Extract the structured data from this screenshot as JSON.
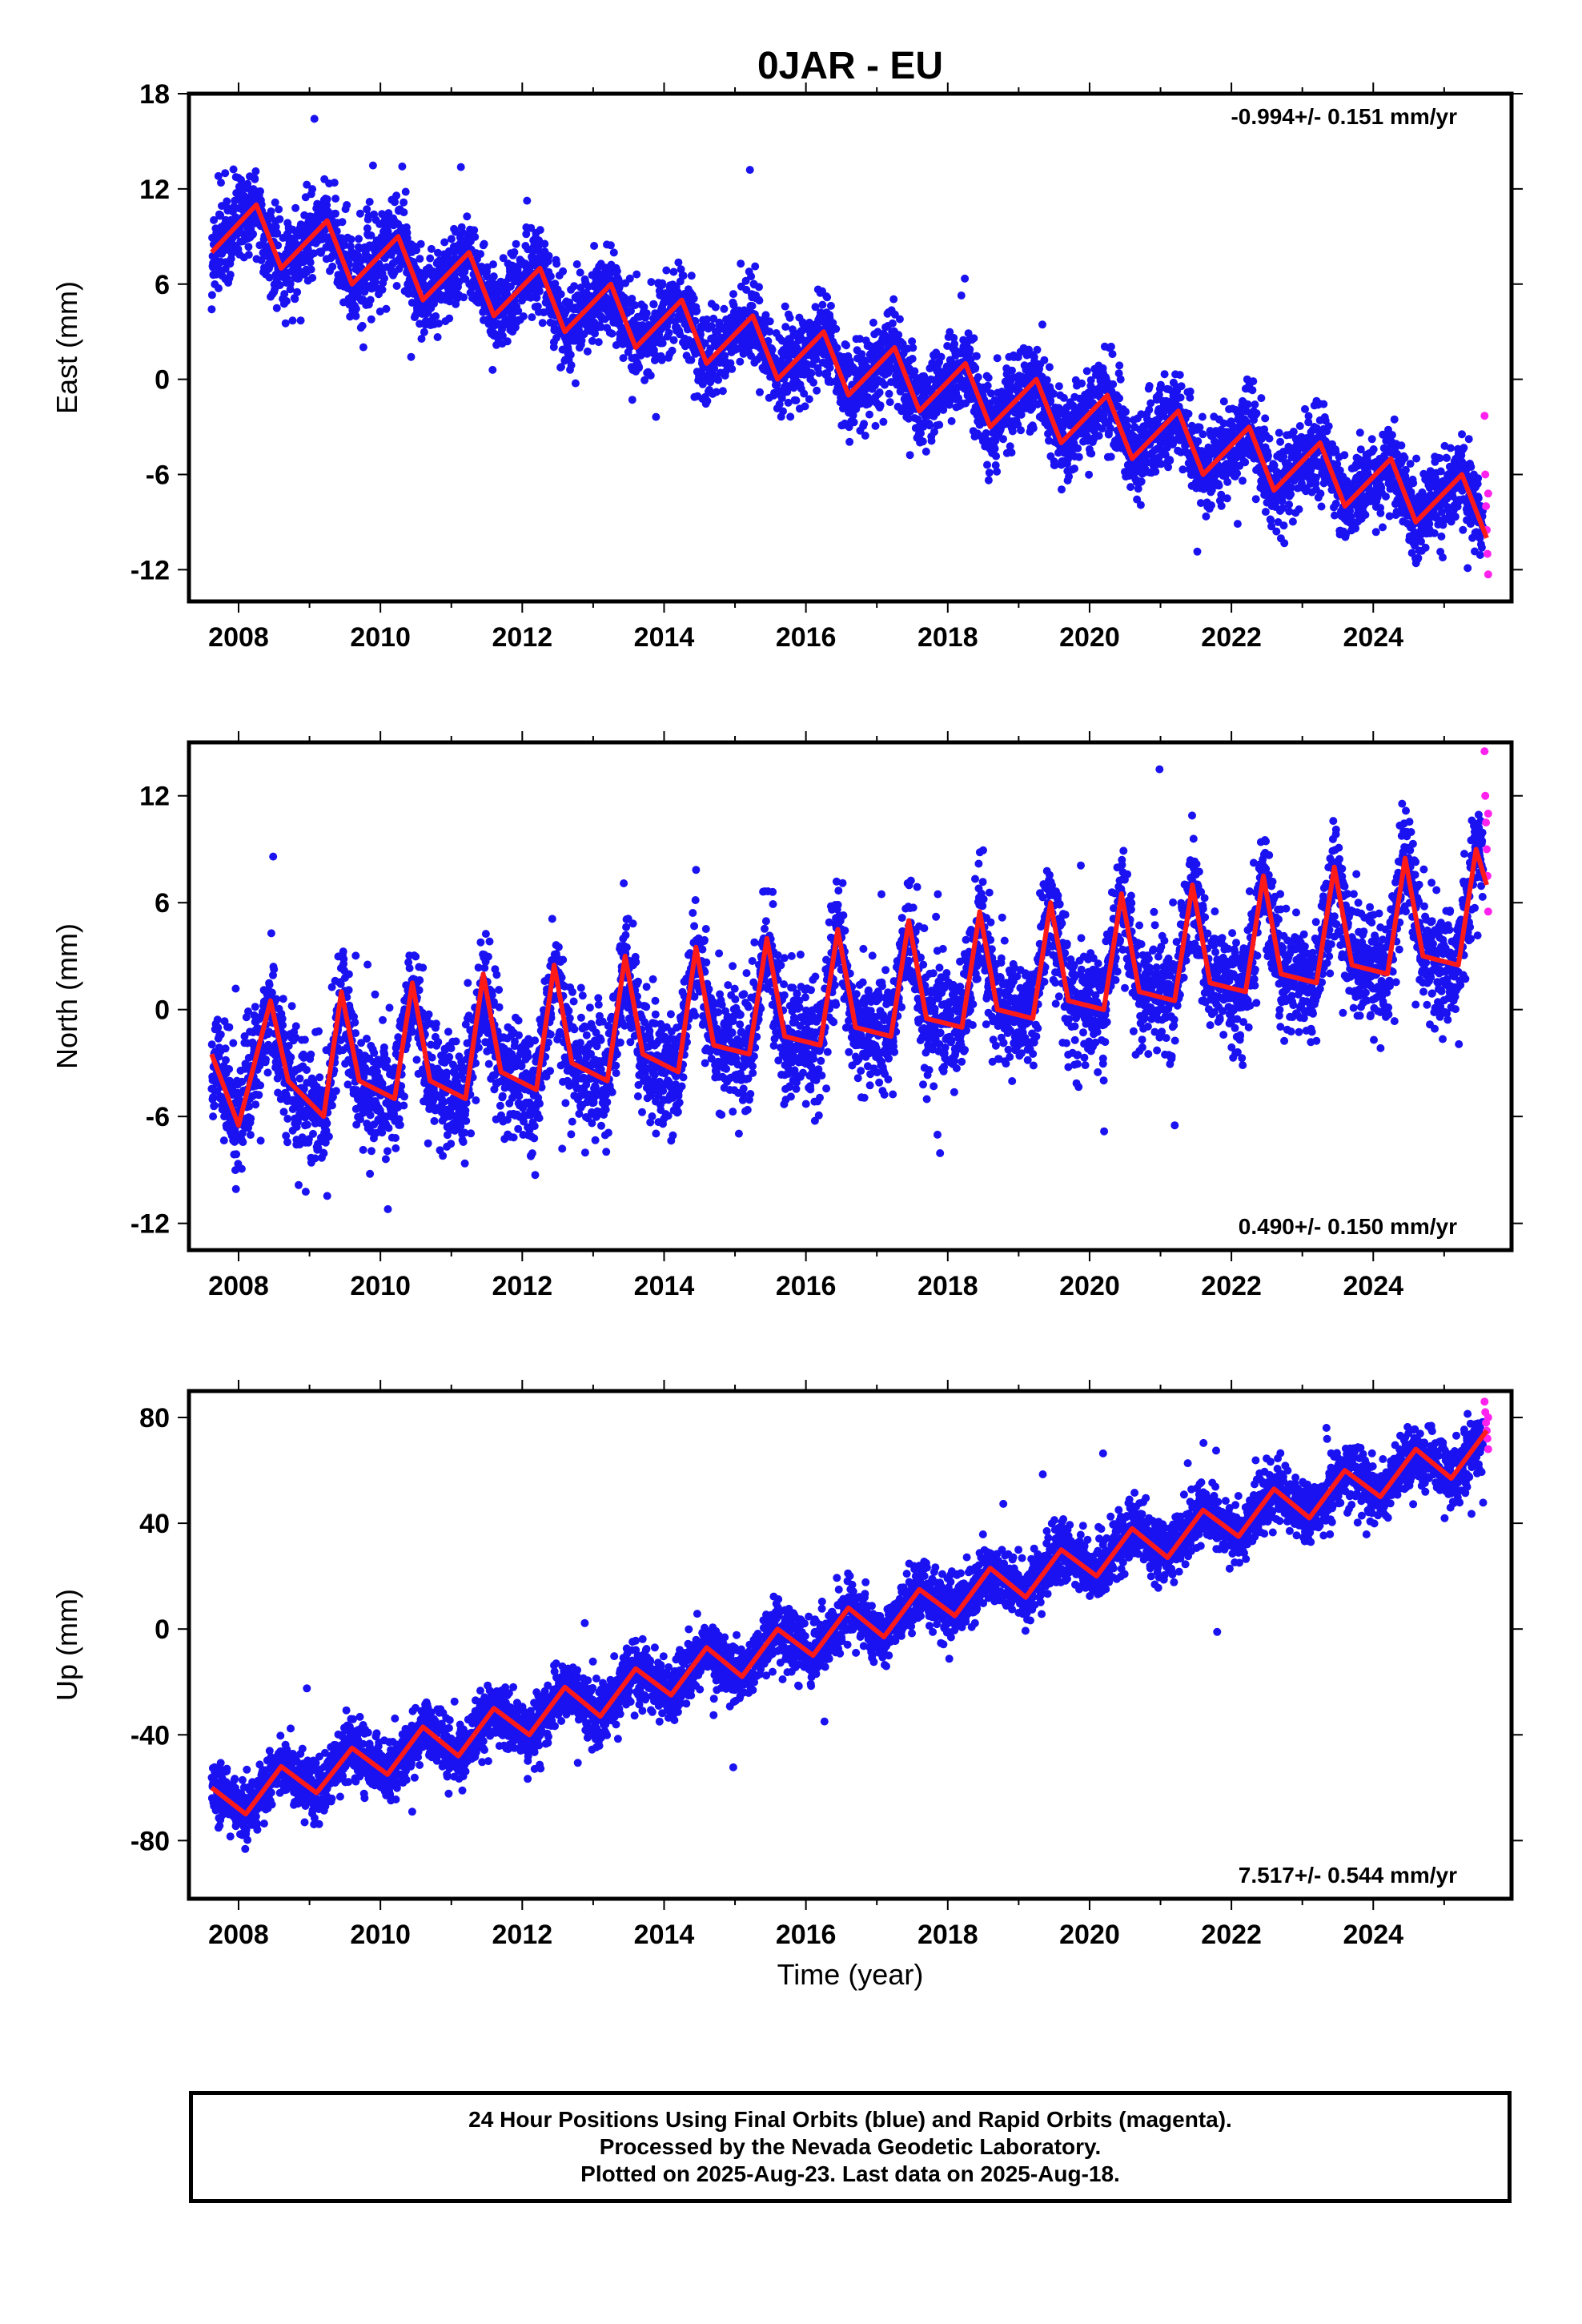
{
  "figure": {
    "title": "0JAR - EU",
    "xlabel": "Time (year)",
    "caption_lines": [
      "24 Hour Positions Using Final Orbits (blue) and Rapid Orbits (magenta).",
      "Processed by the Nevada Geodetic Laboratory.",
      "Plotted on 2025-Aug-23. Last data on 2025-Aug-18."
    ],
    "colors": {
      "final": "#1a12f0",
      "rapid": "#ff22ee",
      "model": "#ff1a1a"
    }
  },
  "chart_data": [
    {
      "type": "scatter",
      "ylabel": "East (mm)",
      "rate": "-0.994+/- 0.151 mm/yr",
      "rate_position": "top-right",
      "xlim": [
        2007.3,
        2025.95
      ],
      "ylim": [
        -14,
        18
      ],
      "xticks": [
        2008,
        2010,
        2012,
        2014,
        2016,
        2018,
        2020,
        2022,
        2024
      ],
      "yticks": [
        -12,
        -6,
        0,
        6,
        12,
        18
      ],
      "series": [
        {
          "type": "scatter",
          "color": "#1a12f0",
          "data_range": [
            2007.62,
            2025.55
          ],
          "trend": {
            "intercept_2008": 8.0,
            "slope": -0.994
          },
          "seasonal_amp": 2.4,
          "scatter_sd": 1.3,
          "points_per_year": 300
        },
        {
          "type": "scatter",
          "color": "#ff22ee",
          "data_range": [
            2025.56,
            2025.63
          ],
          "points": [
            [
              2025.57,
              -2.3
            ],
            [
              2025.58,
              -6.0
            ],
            [
              2025.59,
              -8.0
            ],
            [
              2025.6,
              -9.5
            ],
            [
              2025.61,
              -11.0
            ],
            [
              2025.62,
              -12.3
            ],
            [
              2025.62,
              -7.2
            ]
          ]
        },
        {
          "type": "line",
          "color": "#ff1a1a",
          "points": [
            [
              2007.62,
              8.0
            ],
            [
              2008.25,
              11.0
            ],
            [
              2008.6,
              7.0
            ],
            [
              2009.25,
              10.0
            ],
            [
              2009.6,
              6.0
            ],
            [
              2010.25,
              9.0
            ],
            [
              2010.6,
              5.0
            ],
            [
              2011.25,
              8.0
            ],
            [
              2011.6,
              4.0
            ],
            [
              2012.25,
              7.0
            ],
            [
              2012.6,
              3.0
            ],
            [
              2013.25,
              6.0
            ],
            [
              2013.6,
              2.0
            ],
            [
              2014.25,
              5.0
            ],
            [
              2014.6,
              1.0
            ],
            [
              2015.25,
              4.0
            ],
            [
              2015.6,
              0.0
            ],
            [
              2016.25,
              3.0
            ],
            [
              2016.6,
              -1.0
            ],
            [
              2017.25,
              2.0
            ],
            [
              2017.6,
              -2.0
            ],
            [
              2018.25,
              1.0
            ],
            [
              2018.6,
              -3.0
            ],
            [
              2019.25,
              0.0
            ],
            [
              2019.6,
              -4.0
            ],
            [
              2020.25,
              -1.0
            ],
            [
              2020.6,
              -5.0
            ],
            [
              2021.25,
              -2.0
            ],
            [
              2021.6,
              -6.0
            ],
            [
              2022.25,
              -3.0
            ],
            [
              2022.6,
              -7.0
            ],
            [
              2023.25,
              -4.0
            ],
            [
              2023.6,
              -8.0
            ],
            [
              2024.25,
              -5.0
            ],
            [
              2024.6,
              -9.0
            ],
            [
              2025.25,
              -6.0
            ],
            [
              2025.6,
              -10.0
            ]
          ]
        }
      ]
    },
    {
      "type": "scatter",
      "ylabel": "North (mm)",
      "rate": "0.490+/- 0.150 mm/yr",
      "rate_position": "bottom-right",
      "xlim": [
        2007.3,
        2025.95
      ],
      "ylim": [
        -13.5,
        15
      ],
      "xticks": [
        2008,
        2010,
        2012,
        2014,
        2016,
        2018,
        2020,
        2022,
        2024
      ],
      "yticks": [
        -12,
        -6,
        0,
        6,
        12
      ],
      "series": [
        {
          "type": "scatter",
          "color": "#1a12f0",
          "data_range": [
            2007.62,
            2025.55
          ],
          "trend": {
            "intercept_2008": -3.0,
            "slope": 0.49
          },
          "seasonal_amp": 3.5,
          "scatter_sd": 1.6,
          "points_per_year": 300
        },
        {
          "type": "scatter",
          "color": "#ff22ee",
          "data_range": [
            2025.56,
            2025.63
          ],
          "points": [
            [
              2025.57,
              14.5
            ],
            [
              2025.58,
              12.0
            ],
            [
              2025.59,
              10.5
            ],
            [
              2025.6,
              9.0
            ],
            [
              2025.61,
              7.5
            ],
            [
              2025.62,
              5.5
            ],
            [
              2025.62,
              11.0
            ]
          ]
        },
        {
          "type": "line",
          "color": "#ff1a1a",
          "points": [
            [
              2007.62,
              -2.5
            ],
            [
              2008.0,
              -6.5
            ],
            [
              2008.45,
              0.5
            ],
            [
              2008.7,
              -4.0
            ],
            [
              2009.2,
              -6.0
            ],
            [
              2009.45,
              1.0
            ],
            [
              2009.7,
              -4.0
            ],
            [
              2010.2,
              -5.0
            ],
            [
              2010.45,
              1.5
            ],
            [
              2010.7,
              -4.0
            ],
            [
              2011.2,
              -5.0
            ],
            [
              2011.45,
              2.0
            ],
            [
              2011.7,
              -3.5
            ],
            [
              2012.2,
              -4.5
            ],
            [
              2012.45,
              2.5
            ],
            [
              2012.7,
              -3.0
            ],
            [
              2013.2,
              -4.0
            ],
            [
              2013.45,
              3.0
            ],
            [
              2013.7,
              -2.5
            ],
            [
              2014.2,
              -3.5
            ],
            [
              2014.45,
              3.5
            ],
            [
              2014.7,
              -2.0
            ],
            [
              2015.2,
              -2.5
            ],
            [
              2015.45,
              4.0
            ],
            [
              2015.7,
              -1.5
            ],
            [
              2016.2,
              -2.0
            ],
            [
              2016.45,
              4.5
            ],
            [
              2016.7,
              -1.0
            ],
            [
              2017.2,
              -1.5
            ],
            [
              2017.45,
              5.0
            ],
            [
              2017.7,
              -0.5
            ],
            [
              2018.2,
              -1.0
            ],
            [
              2018.45,
              5.5
            ],
            [
              2018.7,
              0.0
            ],
            [
              2019.2,
              -0.5
            ],
            [
              2019.45,
              6.0
            ],
            [
              2019.7,
              0.5
            ],
            [
              2020.2,
              0.0
            ],
            [
              2020.45,
              6.5
            ],
            [
              2020.7,
              1.0
            ],
            [
              2021.2,
              0.5
            ],
            [
              2021.45,
              7.0
            ],
            [
              2021.7,
              1.5
            ],
            [
              2022.2,
              1.0
            ],
            [
              2022.45,
              7.5
            ],
            [
              2022.7,
              2.0
            ],
            [
              2023.2,
              1.5
            ],
            [
              2023.45,
              8.0
            ],
            [
              2023.7,
              2.5
            ],
            [
              2024.2,
              2.0
            ],
            [
              2024.45,
              8.5
            ],
            [
              2024.7,
              3.0
            ],
            [
              2025.2,
              2.5
            ],
            [
              2025.45,
              9.0
            ],
            [
              2025.6,
              7.0
            ]
          ]
        }
      ]
    },
    {
      "type": "scatter",
      "ylabel": "Up (mm)",
      "rate": "7.517+/- 0.544 mm/yr",
      "rate_position": "bottom-right",
      "xlim": [
        2007.3,
        2025.95
      ],
      "ylim": [
        -102,
        90
      ],
      "xticks": [
        2008,
        2010,
        2012,
        2014,
        2016,
        2018,
        2020,
        2022,
        2024
      ],
      "yticks": [
        -80,
        -40,
        0,
        40,
        80
      ],
      "series": [
        {
          "type": "scatter",
          "color": "#1a12f0",
          "data_range": [
            2007.62,
            2025.55
          ],
          "trend": {
            "intercept_2008": -65.0,
            "slope": 7.5
          },
          "seasonal_amp": 9.0,
          "scatter_sd": 5.5,
          "points_per_year": 300
        },
        {
          "type": "scatter",
          "color": "#ff22ee",
          "data_range": [
            2025.56,
            2025.63
          ],
          "points": [
            [
              2025.57,
              86.0
            ],
            [
              2025.58,
              82.0
            ],
            [
              2025.59,
              78.0
            ],
            [
              2025.6,
              75.0
            ],
            [
              2025.61,
              72.0
            ],
            [
              2025.62,
              68.0
            ],
            [
              2025.62,
              80.0
            ]
          ]
        },
        {
          "type": "line",
          "color": "#ff1a1a",
          "points": [
            [
              2007.62,
              -60.0
            ],
            [
              2008.1,
              -70.0
            ],
            [
              2008.6,
              -52.0
            ],
            [
              2009.1,
              -62.0
            ],
            [
              2009.6,
              -45.0
            ],
            [
              2010.1,
              -55.0
            ],
            [
              2010.6,
              -37.0
            ],
            [
              2011.1,
              -48.0
            ],
            [
              2011.6,
              -30.0
            ],
            [
              2012.1,
              -40.0
            ],
            [
              2012.6,
              -22.0
            ],
            [
              2013.1,
              -33.0
            ],
            [
              2013.6,
              -15.0
            ],
            [
              2014.1,
              -25.0
            ],
            [
              2014.6,
              -7.0
            ],
            [
              2015.1,
              -18.0
            ],
            [
              2015.6,
              0.0
            ],
            [
              2016.1,
              -10.0
            ],
            [
              2016.6,
              8.0
            ],
            [
              2017.1,
              -3.0
            ],
            [
              2017.6,
              15.0
            ],
            [
              2018.1,
              5.0
            ],
            [
              2018.6,
              23.0
            ],
            [
              2019.1,
              12.0
            ],
            [
              2019.6,
              30.0
            ],
            [
              2020.1,
              20.0
            ],
            [
              2020.6,
              38.0
            ],
            [
              2021.1,
              27.0
            ],
            [
              2021.6,
              45.0
            ],
            [
              2022.1,
              35.0
            ],
            [
              2022.6,
              53.0
            ],
            [
              2023.1,
              42.0
            ],
            [
              2023.6,
              60.0
            ],
            [
              2024.1,
              50.0
            ],
            [
              2024.6,
              68.0
            ],
            [
              2025.1,
              57.0
            ],
            [
              2025.6,
              75.0
            ]
          ]
        }
      ]
    }
  ]
}
